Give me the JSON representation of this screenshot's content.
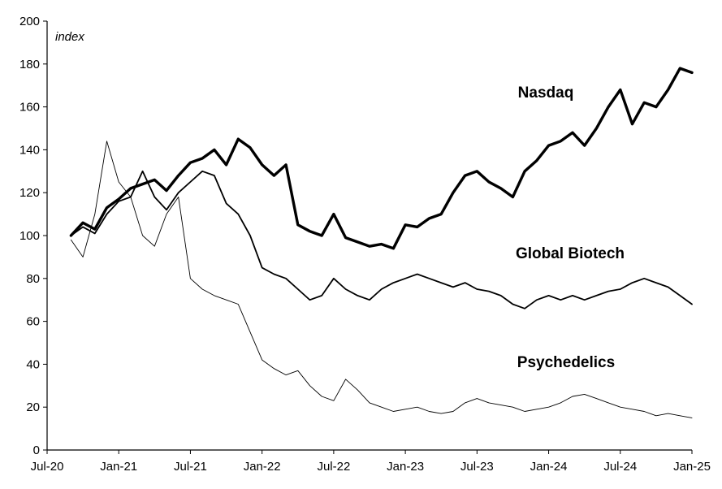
{
  "chart_data": {
    "type": "line",
    "title": "",
    "unit_label": "index",
    "xlabel": "",
    "ylabel": "",
    "x_ticks": [
      "Jul-20",
      "Jan-21",
      "Jul-21",
      "Jan-22",
      "Jul-22",
      "Jan-23",
      "Jul-23",
      "Jan-24",
      "Jul-24",
      "Jan-25"
    ],
    "y_ticks": [
      "0",
      "20",
      "40",
      "60",
      "80",
      "100",
      "120",
      "140",
      "160",
      "180",
      "200"
    ],
    "xlim": [
      "2020-07",
      "2025-01"
    ],
    "ylim": [
      0,
      200
    ],
    "grid": false,
    "series": [
      {
        "name": "Nasdaq",
        "color": "#000000",
        "weight": "heavy",
        "x": [
          "2020-09",
          "2020-10",
          "2020-11",
          "2020-12",
          "2021-01",
          "2021-02",
          "2021-03",
          "2021-04",
          "2021-05",
          "2021-06",
          "2021-07",
          "2021-08",
          "2021-09",
          "2021-10",
          "2021-11",
          "2021-12",
          "2022-01",
          "2022-02",
          "2022-03",
          "2022-04",
          "2022-05",
          "2022-06",
          "2022-07",
          "2022-08",
          "2022-09",
          "2022-10",
          "2022-11",
          "2022-12",
          "2023-01",
          "2023-02",
          "2023-03",
          "2023-04",
          "2023-05",
          "2023-06",
          "2023-07",
          "2023-08",
          "2023-09",
          "2023-10",
          "2023-11",
          "2023-12",
          "2024-01",
          "2024-02",
          "2024-03",
          "2024-04",
          "2024-05",
          "2024-06",
          "2024-07",
          "2024-08",
          "2024-09",
          "2024-10",
          "2024-11",
          "2024-12",
          "2025-01"
        ],
        "values": [
          100,
          106,
          103,
          113,
          117,
          122,
          124,
          126,
          121,
          128,
          134,
          136,
          140,
          133,
          145,
          141,
          133,
          128,
          133,
          105,
          102,
          100,
          110,
          99,
          97,
          95,
          96,
          94,
          105,
          104,
          108,
          110,
          120,
          128,
          130,
          125,
          122,
          118,
          130,
          135,
          142,
          144,
          148,
          142,
          150,
          160,
          168,
          152,
          162,
          160,
          168,
          178,
          176
        ]
      },
      {
        "name": "Global Biotech",
        "color": "#000000",
        "weight": "medium",
        "x": [
          "2020-09",
          "2020-10",
          "2020-11",
          "2020-12",
          "2021-01",
          "2021-02",
          "2021-03",
          "2021-04",
          "2021-05",
          "2021-06",
          "2021-07",
          "2021-08",
          "2021-09",
          "2021-10",
          "2021-11",
          "2021-12",
          "2022-01",
          "2022-02",
          "2022-03",
          "2022-04",
          "2022-05",
          "2022-06",
          "2022-07",
          "2022-08",
          "2022-09",
          "2022-10",
          "2022-11",
          "2022-12",
          "2023-01",
          "2023-02",
          "2023-03",
          "2023-04",
          "2023-05",
          "2023-06",
          "2023-07",
          "2023-08",
          "2023-09",
          "2023-10",
          "2023-11",
          "2023-12",
          "2024-01",
          "2024-02",
          "2024-03",
          "2024-04",
          "2024-05",
          "2024-06",
          "2024-07",
          "2024-08",
          "2024-09",
          "2024-10",
          "2024-11",
          "2024-12",
          "2025-01"
        ],
        "values": [
          100,
          104,
          101,
          110,
          116,
          118,
          130,
          118,
          112,
          120,
          125,
          130,
          128,
          115,
          110,
          100,
          85,
          82,
          80,
          75,
          70,
          72,
          80,
          75,
          72,
          70,
          75,
          78,
          80,
          82,
          80,
          78,
          76,
          78,
          75,
          74,
          72,
          68,
          66,
          70,
          72,
          70,
          72,
          70,
          72,
          74,
          75,
          78,
          80,
          78,
          76,
          72,
          68
        ]
      },
      {
        "name": "Psychedelics",
        "color": "#000000",
        "weight": "light",
        "x": [
          "2020-09",
          "2020-10",
          "2020-11",
          "2020-12",
          "2021-01",
          "2021-02",
          "2021-03",
          "2021-04",
          "2021-05",
          "2021-06",
          "2021-07",
          "2021-08",
          "2021-09",
          "2021-10",
          "2021-11",
          "2021-12",
          "2022-01",
          "2022-02",
          "2022-03",
          "2022-04",
          "2022-05",
          "2022-06",
          "2022-07",
          "2022-08",
          "2022-09",
          "2022-10",
          "2022-11",
          "2022-12",
          "2023-01",
          "2023-02",
          "2023-03",
          "2023-04",
          "2023-05",
          "2023-06",
          "2023-07",
          "2023-08",
          "2023-09",
          "2023-10",
          "2023-11",
          "2023-12",
          "2024-01",
          "2024-02",
          "2024-03",
          "2024-04",
          "2024-05",
          "2024-06",
          "2024-07",
          "2024-08",
          "2024-09",
          "2024-10",
          "2024-11",
          "2024-12",
          "2025-01"
        ],
        "values": [
          98,
          90,
          110,
          144,
          125,
          118,
          100,
          95,
          110,
          118,
          80,
          75,
          72,
          70,
          68,
          55,
          42,
          38,
          35,
          37,
          30,
          25,
          23,
          33,
          28,
          22,
          20,
          18,
          19,
          20,
          18,
          17,
          18,
          22,
          24,
          22,
          21,
          20,
          18,
          19,
          20,
          22,
          25,
          26,
          24,
          22,
          20,
          19,
          18,
          16,
          17,
          16,
          15
        ]
      }
    ]
  }
}
